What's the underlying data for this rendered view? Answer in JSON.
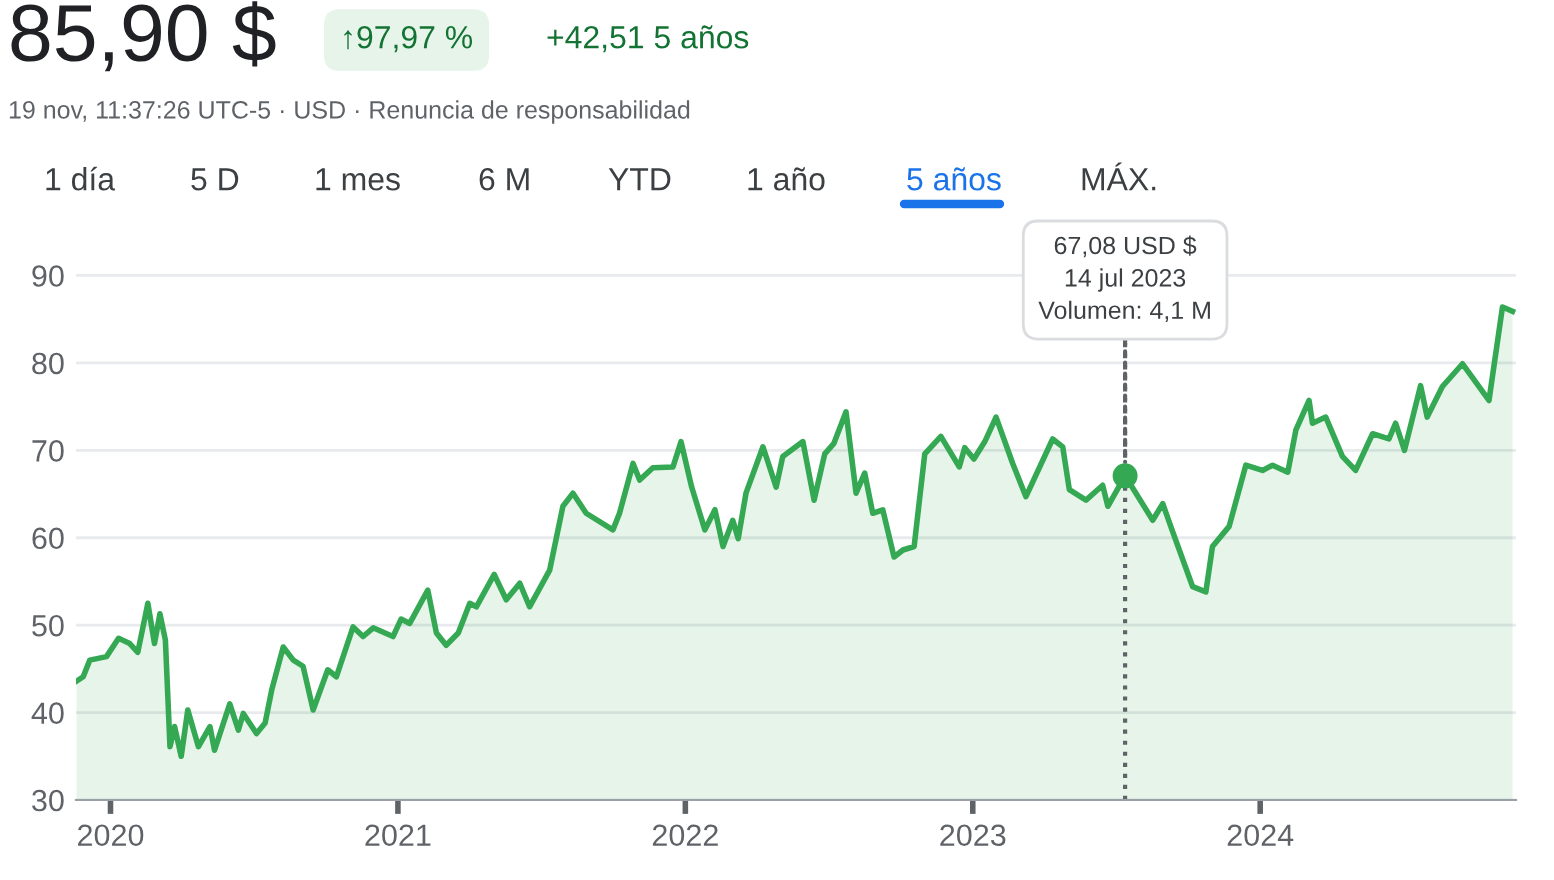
{
  "chart_data": {
    "type": "area",
    "title": "85,90 $",
    "subtitle": "19 nov, 11:37:26 UTC-5 · USD · Renuncia de responsabilidad",
    "annotations": [
      "↑97,97 %",
      "+42,51 5 años",
      "1 día",
      "5 D",
      "1 mes",
      "6 M",
      "YTD",
      "1 año",
      "5 años",
      "MÁX.",
      {
        "text": "67,08 USD $\n14 jul 2023\nVolumen: 4,1 M",
        "x": 2023.53,
        "y": 67.08
      }
    ],
    "ref_lines": [
      {
        "axis": "x",
        "value": 2023.53,
        "color": "#5f6368",
        "line_style": "dotted"
      }
    ],
    "series": [
      {
        "color": "#34a853",
        "x": [
          2019.882,
          2019.905,
          2019.928,
          2019.986,
          2020.028,
          2020.067,
          2020.095,
          2020.13,
          2020.153,
          2020.172,
          2020.191,
          2020.207,
          2020.223,
          2020.246,
          2020.269,
          2020.306,
          2020.346,
          2020.362,
          2020.415,
          2020.445,
          2020.462,
          2020.508,
          2020.538,
          2020.561,
          2020.601,
          2020.636,
          2020.67,
          2020.705,
          2020.756,
          2020.786,
          2020.844,
          2020.879,
          2020.914,
          2020.983,
          2021.011,
          2021.041,
          2021.104,
          2021.134,
          2021.168,
          2021.21,
          2021.25,
          2021.273,
          2021.335,
          2021.377,
          2021.424,
          2021.458,
          2021.528,
          2021.574,
          2021.609,
          2021.655,
          2021.748,
          2021.771,
          2021.818,
          2021.841,
          2021.887,
          2021.957,
          2021.985,
          2022.022,
          2022.068,
          2022.103,
          2022.131,
          2022.165,
          2022.184,
          2022.211,
          2022.27,
          2022.316,
          2022.339,
          2022.409,
          2022.448,
          2022.485,
          2022.517,
          2022.559,
          2022.594,
          2022.624,
          2022.652,
          2022.687,
          2022.726,
          2022.757,
          2022.796,
          2022.833,
          2022.889,
          2022.953,
          2022.972,
          2023.004,
          2023.042,
          2023.081,
          2023.139,
          2023.185,
          2023.278,
          2023.313,
          2023.336,
          2023.394,
          2023.452,
          2023.47,
          2023.53,
          2023.626,
          2023.661,
          2023.691,
          2023.765,
          2023.811,
          2023.834,
          2023.892,
          2023.95,
          2024.008,
          2024.043,
          2024.096,
          2024.124,
          2024.17,
          2024.182,
          2024.228,
          2024.286,
          2024.332,
          2024.391,
          2024.448,
          2024.471,
          2024.502,
          2024.558,
          2024.581,
          2024.634,
          2024.704,
          2024.796,
          2024.843,
          2024.878
        ],
        "values": [
          43.6,
          44.1,
          46.0,
          46.4,
          48.5,
          47.9,
          46.9,
          52.5,
          47.9,
          51.3,
          48.3,
          36.1,
          38.4,
          35.0,
          40.3,
          36.1,
          38.4,
          35.7,
          41.0,
          38.0,
          39.9,
          37.6,
          38.8,
          42.6,
          47.5,
          46.0,
          45.3,
          40.3,
          44.9,
          44.1,
          49.8,
          48.7,
          49.7,
          48.7,
          50.7,
          50.2,
          54.0,
          49.1,
          47.7,
          49.1,
          52.5,
          52.1,
          55.8,
          52.9,
          54.8,
          52.1,
          56.3,
          63.6,
          65.1,
          62.8,
          60.9,
          62.8,
          68.5,
          66.6,
          68.0,
          68.1,
          71.0,
          65.8,
          60.9,
          63.2,
          59.0,
          62.0,
          59.9,
          65.1,
          70.4,
          65.8,
          69.3,
          71.0,
          64.3,
          69.6,
          70.8,
          74.4,
          65.1,
          67.4,
          62.8,
          63.2,
          57.8,
          58.6,
          59.0,
          69.6,
          71.6,
          68.1,
          70.3,
          69.0,
          71.0,
          73.8,
          68.5,
          64.7,
          71.3,
          70.4,
          65.5,
          64.3,
          66.0,
          63.6,
          67.1,
          62.0,
          63.9,
          61.1,
          54.4,
          53.8,
          59.0,
          61.3,
          68.3,
          67.7,
          68.3,
          67.5,
          72.3,
          75.7,
          73.1,
          73.8,
          69.3,
          67.7,
          71.9,
          71.3,
          73.1,
          70.0,
          77.4,
          73.8,
          77.3,
          79.9,
          75.7,
          86.4,
          85.9
        ]
      }
    ],
    "xlim": [
      2019.88,
      2024.89
    ],
    "ylim": [
      30,
      92
    ],
    "xticks": [
      2020,
      2021,
      2022,
      2023,
      2024
    ],
    "yticks": [
      30,
      40,
      50,
      60,
      70,
      80,
      90
    ],
    "grid": "y"
  }
}
